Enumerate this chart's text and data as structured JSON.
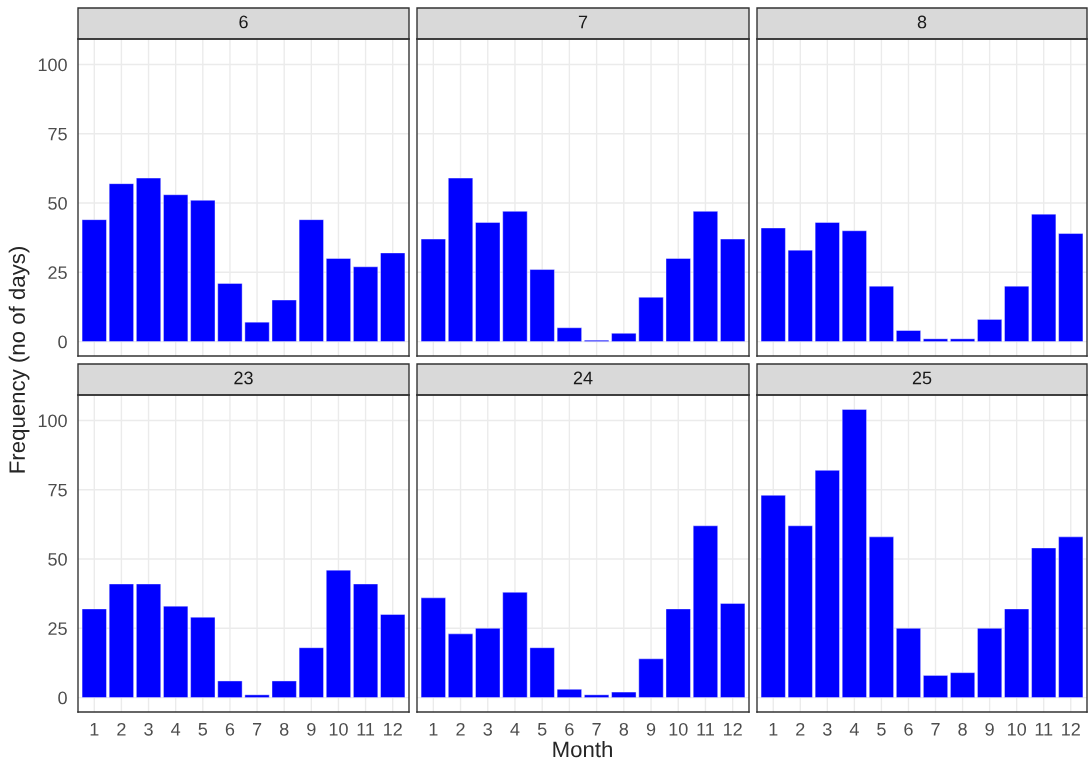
{
  "chart_data": [
    {
      "type": "bar",
      "title": "6",
      "ylabel": "Frequency (no of days)",
      "categories": [
        "1",
        "2",
        "3",
        "4",
        "5",
        "6",
        "7",
        "8",
        "9",
        "10",
        "11",
        "12"
      ],
      "values": [
        44,
        57,
        59,
        53,
        51,
        21,
        7,
        15,
        44,
        30,
        27,
        32
      ],
      "color": "#0000ff",
      "ylim": [
        -5.2,
        109.2
      ],
      "yticks": [
        0,
        25,
        50,
        75,
        100
      ],
      "grid": true,
      "tick_labels": "y"
    },
    {
      "type": "bar",
      "title": "7",
      "categories": [
        "1",
        "2",
        "3",
        "4",
        "5",
        "6",
        "7",
        "8",
        "9",
        "10",
        "11",
        "12"
      ],
      "values": [
        37,
        59,
        43,
        47,
        26,
        5,
        0.5,
        3,
        16,
        30,
        47,
        37
      ],
      "color": "#0000ff",
      "ylim": [
        -5.2,
        109.2
      ],
      "yticks": [
        0,
        25,
        50,
        75,
        100
      ],
      "grid": true,
      "tick_labels": false
    },
    {
      "type": "bar",
      "title": "8",
      "categories": [
        "1",
        "2",
        "3",
        "4",
        "5",
        "6",
        "7",
        "8",
        "9",
        "10",
        "11",
        "12"
      ],
      "values": [
        41,
        33,
        43,
        40,
        20,
        4,
        1,
        1,
        8,
        20,
        46,
        39
      ],
      "color": "#0000ff",
      "ylim": [
        -5.2,
        109.2
      ],
      "yticks": [
        0,
        25,
        50,
        75,
        100
      ],
      "grid": true,
      "tick_labels": false
    },
    {
      "type": "bar",
      "title": "23",
      "categories": [
        "1",
        "2",
        "3",
        "4",
        "5",
        "6",
        "7",
        "8",
        "9",
        "10",
        "11",
        "12"
      ],
      "values": [
        32,
        41,
        41,
        33,
        29,
        6,
        1,
        6,
        18,
        46,
        41,
        30
      ],
      "color": "#0000ff",
      "ylim": [
        -5.2,
        109.2
      ],
      "yticks": [
        0,
        25,
        50,
        75,
        100
      ],
      "grid": true
    },
    {
      "type": "bar",
      "title": "24",
      "xlabel": "Month",
      "categories": [
        "1",
        "2",
        "3",
        "4",
        "5",
        "6",
        "7",
        "8",
        "9",
        "10",
        "11",
        "12"
      ],
      "values": [
        36,
        23,
        25,
        38,
        18,
        3,
        1,
        2,
        14,
        32,
        62,
        34
      ],
      "color": "#0000ff",
      "ylim": [
        -5.2,
        109.2
      ],
      "yticks": [
        0,
        25,
        50,
        75,
        100
      ],
      "grid": true,
      "tick_labels": "x"
    },
    {
      "type": "bar",
      "title": "25",
      "categories": [
        "1",
        "2",
        "3",
        "4",
        "5",
        "6",
        "7",
        "8",
        "9",
        "10",
        "11",
        "12"
      ],
      "values": [
        73,
        62,
        82,
        104,
        58,
        25,
        8,
        9,
        25,
        32,
        54,
        58
      ],
      "color": "#0000ff",
      "ylim": [
        -5.2,
        109.2
      ],
      "yticks": [
        0,
        25,
        50,
        75,
        100
      ],
      "grid": true,
      "tick_labels": "x"
    }
  ]
}
